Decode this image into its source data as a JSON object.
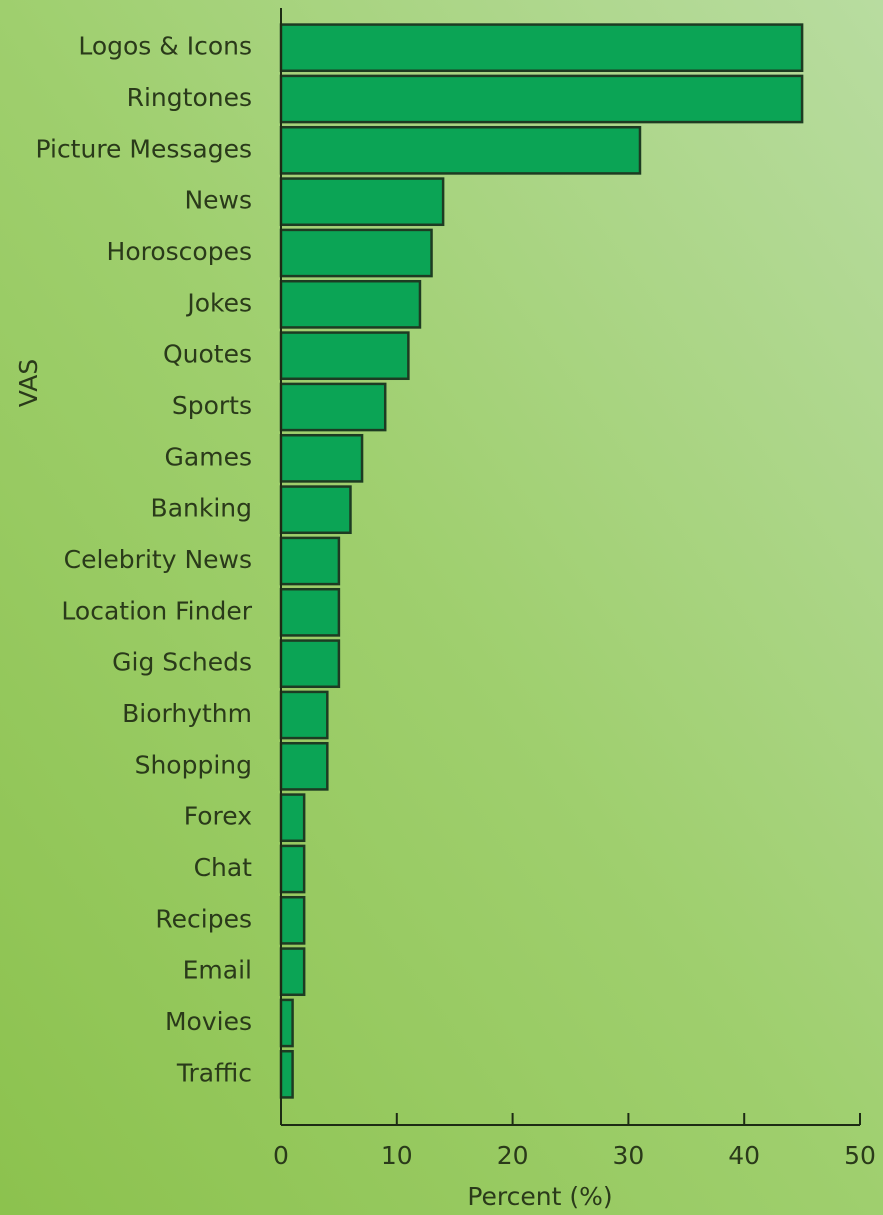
{
  "chart_data": {
    "type": "bar",
    "orientation": "horizontal",
    "categories": [
      "Logos & Icons",
      "Ringtones",
      "Picture Messages",
      "News",
      "Horoscopes",
      "Jokes",
      "Quotes",
      "Sports",
      "Games",
      "Banking",
      "Celebrity News",
      "Location Finder",
      "Gig Scheds",
      "Biorhythm",
      "Shopping",
      "Forex",
      "Chat",
      "Recipes",
      "Email",
      "Movies",
      "Traffic"
    ],
    "values": [
      45,
      45,
      31,
      14,
      13,
      12,
      11,
      9,
      7,
      6,
      5,
      5,
      5,
      4,
      4,
      2,
      2,
      2,
      2,
      1,
      1
    ],
    "color": "#0ba455",
    "x_label": "Percent (%)",
    "y_label": "VAS",
    "xlim": [
      0,
      50
    ],
    "xticks": [
      0,
      10,
      20,
      30,
      40,
      50
    ]
  }
}
